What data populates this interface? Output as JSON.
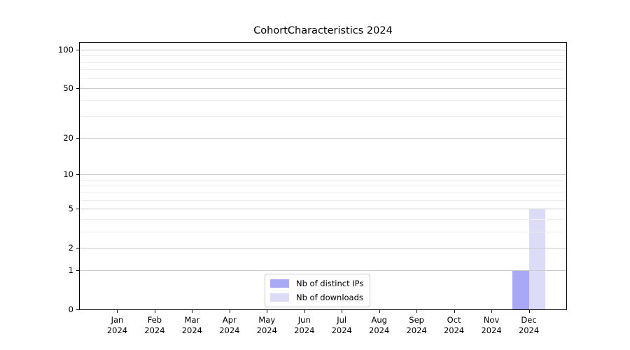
{
  "title": "CohortCharacteristics 2024",
  "chart_data": {
    "type": "bar",
    "title": "CohortCharacteristics 2024",
    "categories": [
      "Jan\n2024",
      "Feb\n2024",
      "Mar\n2024",
      "Apr\n2024",
      "May\n2024",
      "Jun\n2024",
      "Jul\n2024",
      "Aug\n2024",
      "Sep\n2024",
      "Oct\n2024",
      "Nov\n2024",
      "Dec\n2024"
    ],
    "series": [
      {
        "name": "Nb of distinct IPs",
        "color": "#a8a8f5",
        "values": [
          0,
          0,
          0,
          0,
          0,
          0,
          0,
          0,
          0,
          0,
          0,
          1
        ]
      },
      {
        "name": "Nb of downloads",
        "color": "#dcdcf8",
        "values": [
          0,
          0,
          0,
          0,
          0,
          0,
          0,
          0,
          0,
          0,
          0,
          5
        ]
      }
    ],
    "xlabel": "",
    "ylabel": "",
    "ylim": [
      0,
      100
    ],
    "y_scale": "log1p",
    "y_major_ticks": [
      0,
      1,
      2,
      5,
      10,
      20,
      50,
      100
    ],
    "y_minor_gridlines": [
      3,
      4,
      6,
      7,
      8,
      9,
      30,
      40,
      60,
      70,
      80,
      90
    ],
    "grid": "major and minor horizontal gridlines",
    "legend_position": "lower center"
  },
  "colors": {
    "major_grid": "#cbcbcb",
    "minor_grid": "#efefef",
    "spine": "#000000",
    "legend_border": "#cccccc",
    "background": "#ffffff"
  }
}
